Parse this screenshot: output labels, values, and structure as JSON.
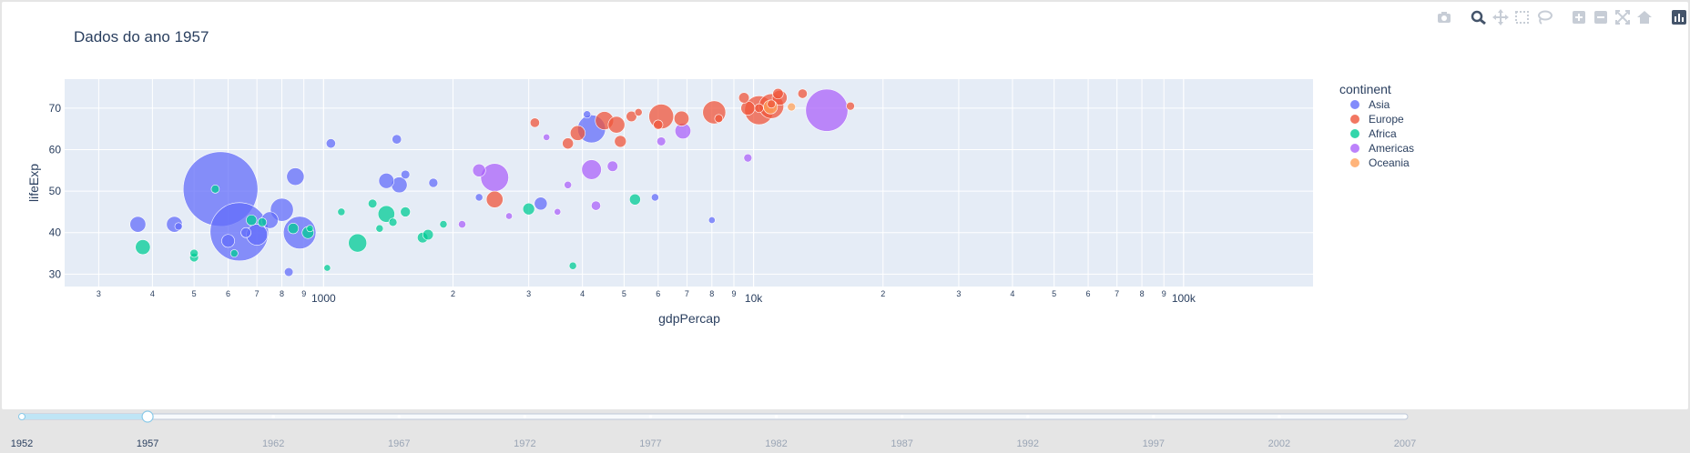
{
  "modebar": {
    "icons": [
      "camera-icon",
      "zoom-icon",
      "pan-icon",
      "box-select-icon",
      "lasso-icon",
      "zoom-in-icon",
      "zoom-out-icon",
      "autoscale-icon",
      "reset-axes-icon",
      "plotly-logo-icon"
    ]
  },
  "slider": {
    "years": [
      "1952",
      "1957",
      "1962",
      "1967",
      "1972",
      "1977",
      "1982",
      "1987",
      "1992",
      "1997",
      "2002",
      "2007"
    ],
    "current_index": 1
  },
  "chart_data": {
    "type": "scatter",
    "title": "Dados do ano 1957",
    "xlabel": "gdpPercap",
    "ylabel": "lifeExp",
    "x_scale": "log",
    "xlim": [
      250,
      200000
    ],
    "ylim": [
      27,
      77
    ],
    "y_ticks": [
      "30",
      "40",
      "50",
      "60",
      "70"
    ],
    "x_ticks": [
      {
        "v": 300,
        "t": "3"
      },
      {
        "v": 400,
        "t": "4"
      },
      {
        "v": 500,
        "t": "5"
      },
      {
        "v": 600,
        "t": "6"
      },
      {
        "v": 700,
        "t": "7"
      },
      {
        "v": 800,
        "t": "8"
      },
      {
        "v": 900,
        "t": "9"
      },
      {
        "v": 1000,
        "t": "1000",
        "major": true
      },
      {
        "v": 2000,
        "t": "2"
      },
      {
        "v": 3000,
        "t": "3"
      },
      {
        "v": 4000,
        "t": "4"
      },
      {
        "v": 5000,
        "t": "5"
      },
      {
        "v": 6000,
        "t": "6"
      },
      {
        "v": 7000,
        "t": "7"
      },
      {
        "v": 8000,
        "t": "8"
      },
      {
        "v": 9000,
        "t": "9"
      },
      {
        "v": 10000,
        "t": "10k",
        "major": true
      },
      {
        "v": 20000,
        "t": "2"
      },
      {
        "v": 30000,
        "t": "3"
      },
      {
        "v": 40000,
        "t": "4"
      },
      {
        "v": 50000,
        "t": "5"
      },
      {
        "v": 60000,
        "t": "6"
      },
      {
        "v": 70000,
        "t": "7"
      },
      {
        "v": 80000,
        "t": "8"
      },
      {
        "v": 90000,
        "t": "9"
      },
      {
        "v": 100000,
        "t": "100k",
        "major": true
      }
    ],
    "grid": true,
    "legend": {
      "title": "continent",
      "placement": "right"
    },
    "series": [
      {
        "name": "Asia",
        "color": "#636efa",
        "points": [
          [
            576,
            50.5,
            1000
          ],
          [
            637,
            40.2,
            610
          ],
          [
            450,
            42,
            45
          ],
          [
            4200,
            65,
            140
          ],
          [
            1400,
            52.5,
            42
          ],
          [
            1500,
            51.5,
            45
          ],
          [
            880,
            40,
            190
          ],
          [
            1040,
            61.5,
            16
          ],
          [
            700,
            39.5,
            80
          ],
          [
            750,
            43,
            50
          ],
          [
            860,
            53.5,
            55
          ],
          [
            800,
            45.5,
            95
          ],
          [
            370,
            42,
            45
          ],
          [
            1480,
            62.5,
            16
          ],
          [
            1550,
            54,
            14
          ],
          [
            3200,
            47,
            30
          ],
          [
            830,
            30.5,
            14
          ],
          [
            5900,
            48.5,
            10
          ],
          [
            8000,
            43,
            8
          ],
          [
            4100,
            68.5,
            10
          ],
          [
            600,
            38,
            30
          ],
          [
            460,
            41.5,
            10
          ],
          [
            1800,
            52,
            15
          ],
          [
            2300,
            48.5,
            10
          ],
          [
            660,
            40,
            18
          ]
        ]
      },
      {
        "name": "Europe",
        "color": "#ef553b",
        "points": [
          [
            10300,
            69.5,
            150
          ],
          [
            11000,
            70.5,
            110
          ],
          [
            8100,
            69,
            95
          ],
          [
            6100,
            68,
            110
          ],
          [
            4500,
            67,
            60
          ],
          [
            4800,
            66,
            50
          ],
          [
            6800,
            67.5,
            40
          ],
          [
            9700,
            70,
            35
          ],
          [
            11500,
            72.5,
            40
          ],
          [
            11400,
            73.5,
            20
          ],
          [
            13000,
            73.5,
            16
          ],
          [
            9500,
            72.5,
            20
          ],
          [
            3100,
            66.5,
            16
          ],
          [
            3700,
            61.5,
            22
          ],
          [
            2500,
            48,
            50
          ],
          [
            4900,
            62,
            25
          ],
          [
            5200,
            68,
            20
          ],
          [
            6000,
            66,
            16
          ],
          [
            10300,
            70,
            14
          ],
          [
            11000,
            71,
            12
          ],
          [
            16800,
            70.5,
            12
          ],
          [
            8300,
            67.5,
            12
          ],
          [
            5400,
            69,
            10
          ],
          [
            3900,
            64,
            40
          ]
        ]
      },
      {
        "name": "Africa",
        "color": "#00cc96",
        "points": [
          [
            3000,
            45.7,
            25
          ],
          [
            1200,
            37.5,
            60
          ],
          [
            1700,
            38.8,
            20
          ],
          [
            1400,
            44.5,
            50
          ],
          [
            1550,
            45,
            18
          ],
          [
            920,
            40,
            25
          ],
          [
            850,
            41,
            20
          ],
          [
            380,
            36.5,
            40
          ],
          [
            680,
            43,
            20
          ],
          [
            1300,
            47,
            14
          ],
          [
            5300,
            48,
            22
          ],
          [
            3800,
            32,
            10
          ],
          [
            500,
            35,
            12
          ],
          [
            620,
            35,
            10
          ],
          [
            720,
            42.5,
            14
          ],
          [
            1100,
            45,
            10
          ],
          [
            1020,
            31.5,
            8
          ],
          [
            1350,
            41,
            10
          ],
          [
            1900,
            42,
            10
          ],
          [
            500,
            34,
            14
          ],
          [
            1750,
            39.5,
            20
          ],
          [
            560,
            50.5,
            12
          ],
          [
            930,
            41,
            8
          ],
          [
            1450,
            42.5,
            12
          ]
        ]
      },
      {
        "name": "Americas",
        "color": "#ab63fa",
        "points": [
          [
            14800,
            69.5,
            320
          ],
          [
            2500,
            53.3,
            140
          ],
          [
            4200,
            55.2,
            70
          ],
          [
            6850,
            64.5,
            45
          ],
          [
            2300,
            55,
            30
          ],
          [
            4700,
            56,
            20
          ],
          [
            6100,
            62,
            14
          ],
          [
            3500,
            45,
            8
          ],
          [
            4300,
            46.5,
            16
          ],
          [
            9700,
            58,
            12
          ],
          [
            2100,
            42,
            10
          ],
          [
            3300,
            63,
            8
          ],
          [
            2700,
            44,
            8
          ],
          [
            3700,
            51.5,
            10
          ]
        ]
      },
      {
        "name": "Oceania",
        "color": "#ffa15a",
        "points": [
          [
            10950,
            70.3,
            35
          ],
          [
            12250,
            70.3,
            12
          ]
        ]
      }
    ]
  }
}
